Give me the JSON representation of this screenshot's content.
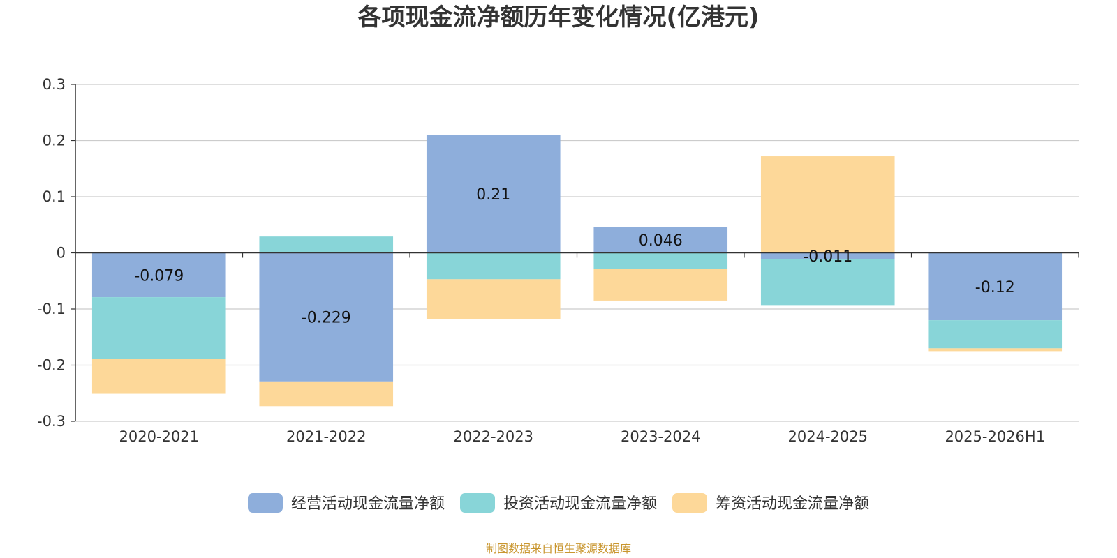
{
  "chart_data": {
    "type": "bar",
    "stacked": true,
    "title": "各项现金流净额历年变化情况(亿港元)",
    "categories": [
      "2020-2021",
      "2021-2022",
      "2022-2023",
      "2023-2024",
      "2024-2025",
      "2025-2026H1"
    ],
    "series": [
      {
        "name": "经营活动现金流量净额",
        "color": "#8eaedb",
        "values": [
          -0.079,
          -0.229,
          0.21,
          0.046,
          -0.011,
          -0.12
        ],
        "labels": [
          "-0.079",
          "-0.229",
          "0.21",
          "0.046",
          "-0.011",
          "-0.12"
        ]
      },
      {
        "name": "投资活动现金流量净额",
        "color": "#88d5d8",
        "values": [
          -0.11,
          0.029,
          -0.047,
          -0.028,
          -0.082,
          -0.05
        ]
      },
      {
        "name": "筹资活动现金流量净额",
        "color": "#fdd899",
        "values": [
          -0.062,
          -0.044,
          -0.071,
          -0.057,
          0.172,
          -0.005
        ]
      }
    ],
    "ylim": [
      -0.3,
      0.3
    ],
    "yticks": [
      0.3,
      0.2,
      0.1,
      0,
      -0.1,
      -0.2,
      -0.3
    ],
    "ytick_labels": [
      "0.3",
      "0.2",
      "0.1",
      "0",
      "-0.1",
      "-0.2",
      "-0.3"
    ],
    "grid": true,
    "legend_position": "bottom-center",
    "xlabel": "",
    "ylabel": ""
  },
  "footer": {
    "source": "制图数据来自恒生聚源数据库",
    "source_color": "#c9962f"
  },
  "axis_color": "#333333",
  "grid_color": "#cccccc"
}
